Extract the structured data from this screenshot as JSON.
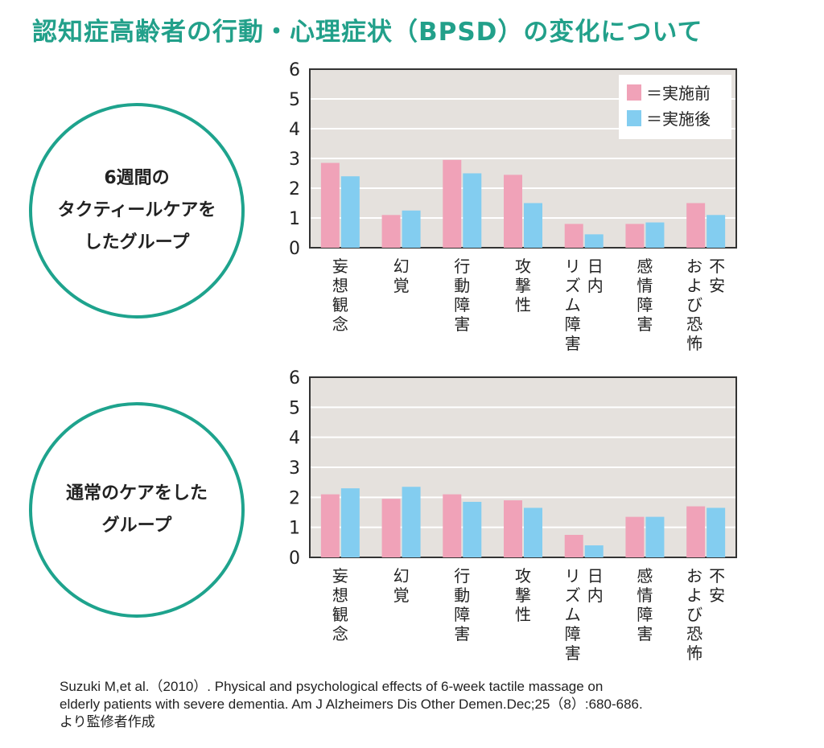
{
  "title": "認知症高齢者の行動・心理症状（BPSD）の変化について",
  "groups": [
    {
      "label": "6週間の\nタクティールケアを\nしたグループ"
    },
    {
      "label": "通常のケアをした\nグループ"
    }
  ],
  "legend": [
    {
      "name": "＝実施前",
      "color": "#f0a2b8"
    },
    {
      "name": "＝実施後",
      "color": "#83cdf0"
    }
  ],
  "colors": {
    "title": "#22a08a",
    "circle": "#1ea38d",
    "plot_bg": "#e5e1dd",
    "before": "#f0a2b8",
    "after": "#83cdf0"
  },
  "chart_data": [
    {
      "type": "bar",
      "title": "",
      "xlabel": "",
      "ylabel": "",
      "ylim": [
        0,
        6
      ],
      "yticks": [
        "0",
        "1",
        "2",
        "3",
        "4",
        "5",
        "6"
      ],
      "grid": true,
      "legend_position": "top-right",
      "categories": [
        [
          "妄",
          "想",
          "観",
          "念"
        ],
        [
          "幻",
          "覚"
        ],
        [
          "行",
          "動",
          "障",
          "害"
        ],
        [
          "攻",
          "撃",
          "性"
        ],
        [
          "日",
          "内",
          "リ",
          "ズ",
          "ム",
          "障",
          "害"
        ],
        [
          "感",
          "情",
          "障",
          "害"
        ],
        [
          "不",
          "安",
          "お",
          "よ",
          "び",
          "恐",
          "怖"
        ]
      ],
      "series": [
        {
          "name": "＝実施前",
          "values": [
            2.85,
            1.1,
            2.95,
            2.45,
            0.8,
            0.8,
            1.5
          ]
        },
        {
          "name": "＝実施後",
          "values": [
            2.4,
            1.25,
            2.5,
            1.5,
            0.45,
            0.85,
            1.1
          ]
        }
      ]
    },
    {
      "type": "bar",
      "title": "",
      "xlabel": "",
      "ylabel": "",
      "ylim": [
        0,
        6
      ],
      "yticks": [
        "0",
        "1",
        "2",
        "3",
        "4",
        "5",
        "6"
      ],
      "grid": true,
      "legend_position": "none",
      "categories": [
        [
          "妄",
          "想",
          "観",
          "念"
        ],
        [
          "幻",
          "覚"
        ],
        [
          "行",
          "動",
          "障",
          "害"
        ],
        [
          "攻",
          "撃",
          "性"
        ],
        [
          "日",
          "内",
          "リ",
          "ズ",
          "ム",
          "障",
          "害"
        ],
        [
          "感",
          "情",
          "障",
          "害"
        ],
        [
          "不",
          "安",
          "お",
          "よ",
          "び",
          "恐",
          "怖"
        ]
      ],
      "series": [
        {
          "name": "＝実施前",
          "values": [
            2.1,
            1.95,
            2.1,
            1.9,
            0.75,
            1.35,
            1.7
          ]
        },
        {
          "name": "＝実施後",
          "values": [
            2.3,
            2.35,
            1.85,
            1.65,
            0.4,
            1.35,
            1.65
          ]
        }
      ]
    }
  ],
  "citation": [
    "Suzuki M,et al.（2010）. Physical and psychological effects of 6-week tactile massage on",
    "elderly patients with severe dementia. Am J Alzheimers Dis Other Demen.Dec;25（8）:680-686.",
    "より監修者作成"
  ]
}
